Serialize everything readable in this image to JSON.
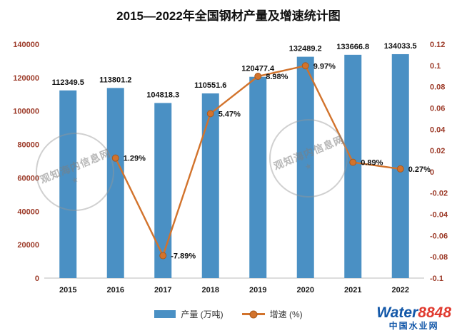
{
  "title": "2015—2022年全国钢材产量及增速统计图",
  "chart_data": {
    "type": "bar",
    "title": "2015—2022年全国钢材产量及增速统计图",
    "categories": [
      "2015",
      "2016",
      "2017",
      "2018",
      "2019",
      "2020",
      "2021",
      "2022"
    ],
    "series": [
      {
        "name": "产量 (万吨)",
        "type": "bar",
        "axis": "left",
        "color": "#4a90c4",
        "values": [
          112349.5,
          113801.2,
          104818.3,
          110551.6,
          120477.4,
          132489.2,
          133666.8,
          134033.5
        ],
        "labels": [
          "112349.5",
          "113801.2",
          "104818.3",
          "110551.6",
          "120477.4",
          "132489.2",
          "133666.8",
          "134033.5"
        ]
      },
      {
        "name": "增速 (%)",
        "type": "line",
        "axis": "right",
        "color": "#d2732c",
        "values": [
          null,
          0.0129,
          -0.0789,
          0.0547,
          0.0898,
          0.0997,
          0.0089,
          0.0027
        ],
        "labels": [
          "",
          "1.29%",
          "-7.89%",
          "5.47%",
          "8.98%",
          "9.97%",
          "0.89%",
          "0.27%"
        ]
      }
    ],
    "left_axis": {
      "min": 0,
      "max": 140000,
      "ticks": [
        {
          "v": 140000,
          "label": "140000"
        },
        {
          "v": 120000,
          "label": "120000"
        },
        {
          "v": 100000,
          "label": "100000"
        },
        {
          "v": 80000,
          "label": "80000"
        },
        {
          "v": 60000,
          "label": "60000"
        },
        {
          "v": 40000,
          "label": "40000"
        },
        {
          "v": 20000,
          "label": "20000"
        },
        {
          "v": 0,
          "label": "0"
        }
      ]
    },
    "right_axis": {
      "min": -0.1,
      "max": 0.12,
      "ticks": [
        {
          "v": 0.12,
          "label": "0.12"
        },
        {
          "v": 0.1,
          "label": "0.1"
        },
        {
          "v": 0.08,
          "label": "0.08"
        },
        {
          "v": 0.06,
          "label": "0.06"
        },
        {
          "v": 0.04,
          "label": "0.04"
        },
        {
          "v": 0.02,
          "label": "0.02"
        },
        {
          "v": 0,
          "label": "0"
        },
        {
          "v": -0.02,
          "label": "-0.02"
        },
        {
          "v": -0.04,
          "label": "-0.04"
        },
        {
          "v": -0.06,
          "label": "-0.06"
        },
        {
          "v": -0.08,
          "label": "-0.08"
        },
        {
          "v": -0.1,
          "label": "-0.1"
        }
      ]
    },
    "grid": false,
    "legend_position": "bottom"
  },
  "legend": {
    "bar_label": "产量 (万吨)",
    "line_label": "增速 (%)"
  },
  "colors": {
    "bar": "#4a90c4",
    "line": "#d2732c",
    "line_marker_edge": "#a9591d",
    "axis_text": "#9c3a28",
    "label_text": "#111111"
  },
  "watermark": {
    "stamp_text": "观知海内信息网",
    "star": "★"
  },
  "logo": {
    "part1": "Water",
    "part2": "8848",
    "subtitle": "中国水业网"
  }
}
